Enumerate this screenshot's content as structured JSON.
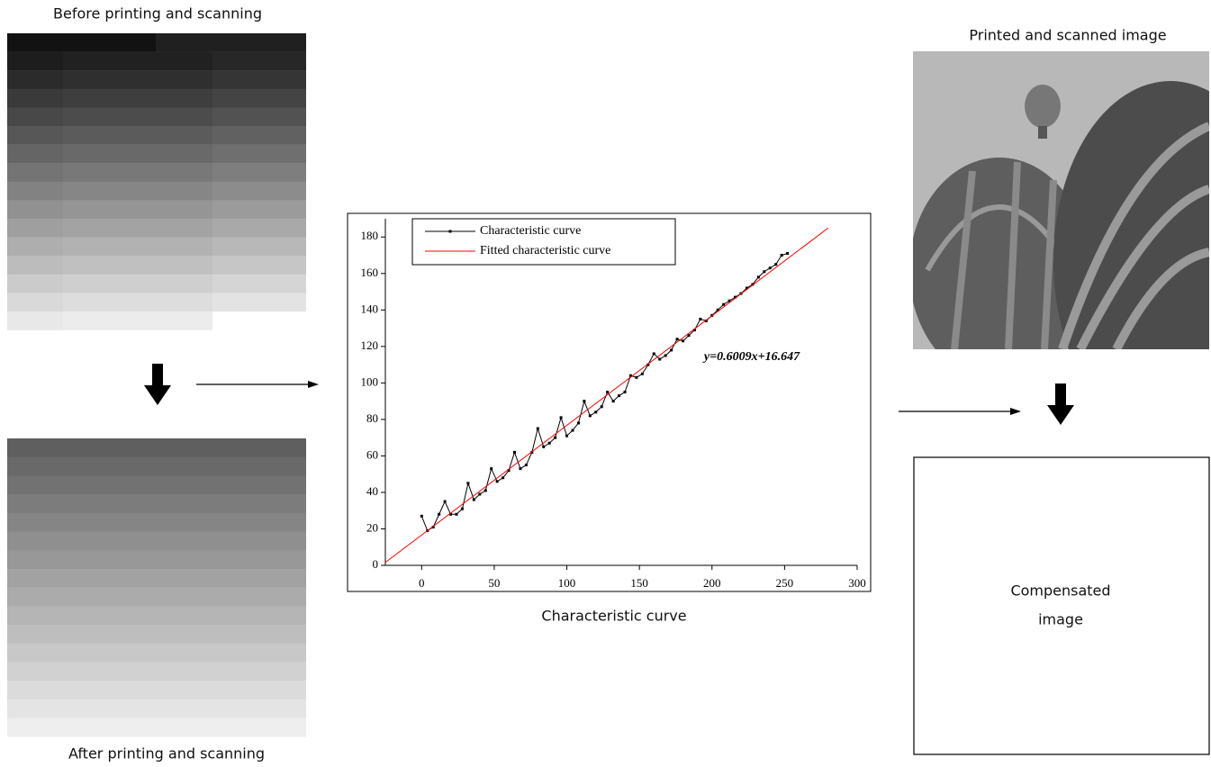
{
  "labels": {
    "before": "Before printing and scanning",
    "after": "After printing and scanning",
    "printed": "Printed and scanned image",
    "compensated": [
      "Compensated",
      "image"
    ]
  },
  "chart_data": {
    "type": "line",
    "caption": "Characteristic curve",
    "xlim": [
      -25,
      300
    ],
    "ylim": [
      0,
      190
    ],
    "xticks": [
      0,
      50,
      100,
      150,
      200,
      250,
      300
    ],
    "yticks": [
      0,
      20,
      40,
      60,
      80,
      100,
      120,
      140,
      160,
      180
    ],
    "series": [
      {
        "name": "Characteristic curve",
        "color": "#000000",
        "marker": "square",
        "x": [
          0,
          4,
          8,
          12,
          16,
          20,
          24,
          28,
          32,
          36,
          40,
          44,
          48,
          52,
          56,
          60,
          64,
          68,
          72,
          76,
          80,
          84,
          88,
          92,
          96,
          100,
          104,
          108,
          112,
          116,
          120,
          124,
          128,
          132,
          136,
          140,
          144,
          148,
          152,
          156,
          160,
          164,
          168,
          172,
          176,
          180,
          184,
          188,
          192,
          196,
          200,
          204,
          208,
          212,
          216,
          220,
          224,
          228,
          232,
          236,
          240,
          244,
          248,
          252
        ],
        "values": [
          27,
          19,
          21,
          28,
          35,
          28,
          28,
          31,
          45,
          36,
          39,
          41,
          53,
          46,
          48,
          52,
          62,
          53,
          55,
          62,
          75,
          65,
          67,
          70,
          81,
          71,
          74,
          78,
          90,
          82,
          84,
          87,
          95,
          90,
          93,
          95,
          104,
          103,
          105,
          110,
          116,
          113,
          115,
          118,
          124,
          123,
          126,
          129,
          135,
          134,
          137,
          140,
          143,
          145,
          147,
          149,
          152,
          154,
          158,
          161,
          163,
          165,
          170,
          171
        ]
      },
      {
        "name": "Fitted characteristic curve",
        "color": "#ff0000",
        "x": [
          -25,
          280
        ],
        "values": [
          1.6,
          184.9
        ]
      }
    ],
    "annotations": [
      "y=0.6009x+16.647"
    ]
  }
}
